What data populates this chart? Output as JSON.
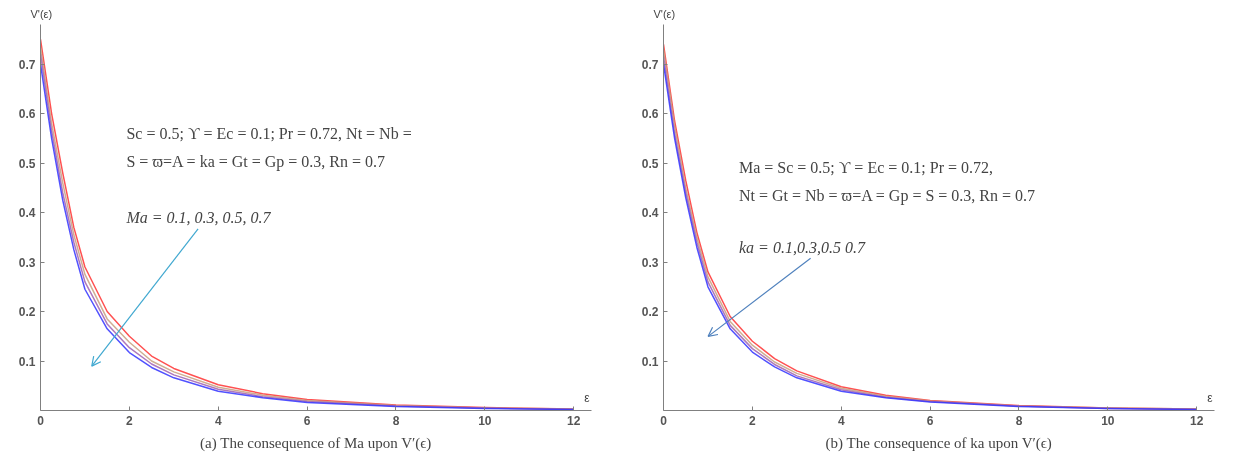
{
  "chart_data": [
    {
      "type": "line",
      "title": "(a) The consequence of Ma upon V′(ϵ)",
      "xlabel": "ε",
      "ylabel": "V'(ε)",
      "xlim": [
        0,
        12.4
      ],
      "ylim": [
        0,
        0.78
      ],
      "xticks": [
        0,
        2,
        4,
        6,
        8,
        10,
        12
      ],
      "yticks": [
        0.1,
        0.2,
        0.3,
        0.4,
        0.5,
        0.6,
        0.7
      ],
      "grid": false,
      "x": [
        0,
        0.25,
        0.5,
        0.75,
        1,
        1.5,
        2,
        2.5,
        3,
        4,
        5,
        6,
        8,
        10,
        12
      ],
      "series": [
        {
          "color": "#ff3333",
          "values": [
            0.75,
            0.6,
            0.48,
            0.37,
            0.29,
            0.2,
            0.15,
            0.11,
            0.085,
            0.052,
            0.034,
            0.022,
            0.011,
            0.006,
            0.003
          ]
        },
        {
          "color": "#c8a080",
          "values": [
            0.735,
            0.58,
            0.46,
            0.355,
            0.275,
            0.185,
            0.138,
            0.1,
            0.078,
            0.047,
            0.031,
            0.02,
            0.01,
            0.005,
            0.003
          ]
        },
        {
          "color": "#a060b0",
          "values": [
            0.72,
            0.565,
            0.44,
            0.34,
            0.26,
            0.175,
            0.127,
            0.094,
            0.072,
            0.043,
            0.028,
            0.018,
            0.009,
            0.005,
            0.002
          ]
        },
        {
          "color": "#3333ff",
          "values": [
            0.7,
            0.55,
            0.425,
            0.325,
            0.245,
            0.165,
            0.117,
            0.087,
            0.066,
            0.039,
            0.026,
            0.016,
            0.008,
            0.004,
            0.002
          ]
        }
      ],
      "annotations": [
        "Sc = 0.5; ϒ = Ec = 0.1; Pr = 0.72, Nt = Nb =",
        "S = ϖ=A = ka = Gt = Gp = 0.3, Rn = 0.7",
        "Ma = 0.1, 0.3, 0.5, 0.7"
      ]
    },
    {
      "type": "line",
      "title": "(b) The consequence of ka upon V′(ϵ)",
      "xlabel": "ε",
      "ylabel": "V'(ε)",
      "xlim": [
        0,
        12.4
      ],
      "ylim": [
        0,
        0.78
      ],
      "xticks": [
        0,
        2,
        4,
        6,
        8,
        10,
        12
      ],
      "yticks": [
        0.1,
        0.2,
        0.3,
        0.4,
        0.5,
        0.6,
        0.7
      ],
      "grid": false,
      "x": [
        0,
        0.25,
        0.5,
        0.75,
        1,
        1.5,
        2,
        2.5,
        3,
        4,
        5,
        6,
        8,
        10,
        12
      ],
      "series": [
        {
          "color": "#ff3333",
          "values": [
            0.74,
            0.585,
            0.465,
            0.36,
            0.28,
            0.19,
            0.14,
            0.105,
            0.08,
            0.048,
            0.031,
            0.02,
            0.01,
            0.005,
            0.003
          ]
        },
        {
          "color": "#c8a080",
          "values": [
            0.73,
            0.575,
            0.45,
            0.35,
            0.27,
            0.18,
            0.132,
            0.098,
            0.075,
            0.045,
            0.029,
            0.019,
            0.009,
            0.005,
            0.003
          ]
        },
        {
          "color": "#a060b0",
          "values": [
            0.715,
            0.56,
            0.44,
            0.34,
            0.26,
            0.172,
            0.125,
            0.093,
            0.07,
            0.042,
            0.027,
            0.018,
            0.009,
            0.004,
            0.002
          ]
        },
        {
          "color": "#3333ff",
          "values": [
            0.7,
            0.55,
            0.43,
            0.33,
            0.25,
            0.165,
            0.118,
            0.088,
            0.066,
            0.039,
            0.026,
            0.017,
            0.008,
            0.004,
            0.002
          ]
        }
      ],
      "annotations": [
        "Ma = Sc = 0.5; ϒ = Ec = 0.1; Pr = 0.72,",
        "Nt = Gt = Nb = ϖ=A = Gp = S = 0.3, Rn = 0.7",
        "ka = 0.1,0.3,0.5 0.7"
      ]
    }
  ]
}
